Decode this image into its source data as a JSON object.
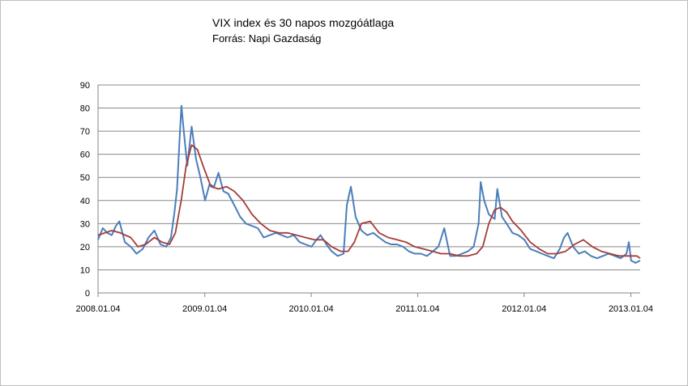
{
  "chart_data": {
    "type": "line",
    "title": "VIX index és 30 napos mozgóátlaga",
    "subtitle": "Forrás: Napi Gazdaság",
    "xlabel": "",
    "ylabel": "",
    "ylim": [
      0,
      90
    ],
    "yticks": [
      0,
      10,
      20,
      30,
      40,
      50,
      60,
      70,
      80,
      90
    ],
    "xlim": [
      "2008.01.04",
      "2013.02.05"
    ],
    "xticks": [
      "2008.01.04",
      "2009.01.04",
      "2010.01.04",
      "2011.01.04",
      "2012.01.04",
      "2013.01.04"
    ],
    "grid": true,
    "legend": "none",
    "colors": {
      "vix": "#4a7ebb",
      "moving_average": "#a33d3a",
      "grid": "#888888"
    },
    "series": [
      {
        "key": "vix",
        "x": [
          "2008.01.04",
          "2008.01.20",
          "2008.02.05",
          "2008.02.20",
          "2008.03.05",
          "2008.03.17",
          "2008.04.05",
          "2008.04.25",
          "2008.05.15",
          "2008.06.05",
          "2008.06.25",
          "2008.07.15",
          "2008.08.05",
          "2008.08.25",
          "2008.09.10",
          "2008.09.22",
          "2008.10.01",
          "2008.10.10",
          "2008.10.16",
          "2008.10.24",
          "2008.11.05",
          "2008.11.20",
          "2008.12.05",
          "2008.12.20",
          "2009.01.05",
          "2009.01.20",
          "2009.02.05",
          "2009.02.20",
          "2009.03.09",
          "2009.03.25",
          "2009.04.15",
          "2009.05.05",
          "2009.05.25",
          "2009.06.15",
          "2009.07.05",
          "2009.07.25",
          "2009.08.15",
          "2009.09.05",
          "2009.09.25",
          "2009.10.15",
          "2009.11.05",
          "2009.11.25",
          "2009.12.15",
          "2010.01.05",
          "2010.01.22",
          "2010.02.05",
          "2010.02.25",
          "2010.03.15",
          "2010.04.05",
          "2010.04.25",
          "2010.05.06",
          "2010.05.20",
          "2010.06.05",
          "2010.06.25",
          "2010.07.15",
          "2010.08.05",
          "2010.08.25",
          "2010.09.15",
          "2010.10.05",
          "2010.10.25",
          "2010.11.15",
          "2010.12.05",
          "2010.12.25",
          "2011.01.15",
          "2011.02.05",
          "2011.02.25",
          "2011.03.16",
          "2011.04.05",
          "2011.04.25",
          "2011.05.15",
          "2011.06.05",
          "2011.06.25",
          "2011.07.15",
          "2011.08.01",
          "2011.08.08",
          "2011.08.20",
          "2011.09.05",
          "2011.09.25",
          "2011.10.04",
          "2011.10.20",
          "2011.11.05",
          "2011.11.25",
          "2011.12.15",
          "2012.01.05",
          "2012.01.25",
          "2012.02.15",
          "2012.03.05",
          "2012.03.25",
          "2012.04.15",
          "2012.05.05",
          "2012.05.20",
          "2012.06.01",
          "2012.06.20",
          "2012.07.10",
          "2012.07.30",
          "2012.08.20",
          "2012.09.10",
          "2012.09.30",
          "2012.10.20",
          "2012.11.10",
          "2012.11.30",
          "2012.12.20",
          "2012.12.28",
          "2013.01.05",
          "2013.01.20",
          "2013.02.05"
        ],
        "values": [
          23,
          28,
          26,
          25,
          29,
          31,
          22,
          20,
          17,
          19,
          24,
          27,
          21,
          20,
          24,
          35,
          45,
          68,
          81,
          70,
          55,
          72,
          58,
          50,
          40,
          47,
          46,
          52,
          44,
          43,
          38,
          33,
          30,
          29,
          28,
          24,
          25,
          26,
          25,
          24,
          25,
          22,
          21,
          20,
          23,
          25,
          21,
          18,
          16,
          17,
          38,
          46,
          33,
          27,
          25,
          26,
          24,
          22,
          21,
          21,
          20,
          18,
          17,
          17,
          16,
          18,
          20,
          28,
          16,
          16,
          17,
          18,
          20,
          30,
          48,
          40,
          34,
          32,
          45,
          33,
          30,
          26,
          25,
          23,
          19,
          18,
          17,
          16,
          15,
          19,
          24,
          26,
          20,
          17,
          18,
          16,
          15,
          16,
          17,
          16,
          15,
          17,
          22,
          14,
          13,
          14
        ]
      },
      {
        "key": "moving_average",
        "x": [
          "2008.01.04",
          "2008.02.20",
          "2008.03.20",
          "2008.04.25",
          "2008.05.20",
          "2008.06.15",
          "2008.07.15",
          "2008.08.10",
          "2008.09.05",
          "2008.09.25",
          "2008.10.15",
          "2008.11.01",
          "2008.11.20",
          "2008.12.10",
          "2009.01.01",
          "2009.01.25",
          "2009.02.20",
          "2009.03.20",
          "2009.04.15",
          "2009.05.15",
          "2009.06.15",
          "2009.07.15",
          "2009.08.15",
          "2009.09.15",
          "2009.10.15",
          "2009.11.15",
          "2009.12.15",
          "2010.01.15",
          "2010.02.15",
          "2010.03.15",
          "2010.04.15",
          "2010.05.10",
          "2010.06.01",
          "2010.06.25",
          "2010.07.25",
          "2010.08.25",
          "2010.09.25",
          "2010.10.25",
          "2010.11.25",
          "2010.12.25",
          "2011.01.25",
          "2011.02.25",
          "2011.03.25",
          "2011.04.25",
          "2011.05.25",
          "2011.06.25",
          "2011.07.25",
          "2011.08.15",
          "2011.09.05",
          "2011.09.25",
          "2011.10.15",
          "2011.11.05",
          "2011.11.25",
          "2011.12.25",
          "2012.01.25",
          "2012.02.25",
          "2012.03.25",
          "2012.04.25",
          "2012.05.25",
          "2012.06.25",
          "2012.07.25",
          "2012.08.25",
          "2012.09.25",
          "2012.10.25",
          "2012.11.25",
          "2012.12.25",
          "2013.01.25",
          "2013.02.05"
        ],
        "values": [
          25,
          27,
          26,
          24,
          20,
          21,
          24,
          22,
          21,
          26,
          40,
          55,
          64,
          62,
          54,
          46,
          45,
          46,
          44,
          40,
          34,
          30,
          27,
          26,
          26,
          25,
          24,
          23,
          23,
          20,
          18,
          18,
          22,
          30,
          31,
          26,
          24,
          23,
          22,
          20,
          19,
          18,
          17,
          17,
          16,
          16,
          17,
          20,
          30,
          36,
          37,
          35,
          31,
          27,
          22,
          19,
          17,
          17,
          18,
          21,
          23,
          20,
          18,
          17,
          16,
          16,
          16,
          15
        ]
      }
    ]
  }
}
